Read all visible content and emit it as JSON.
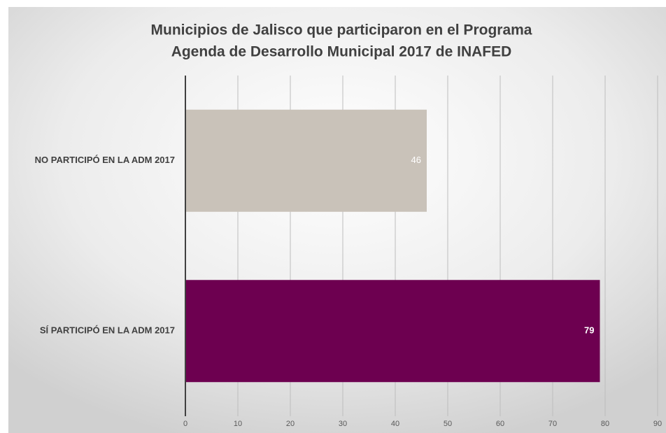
{
  "chart_data": {
    "type": "bar",
    "orientation": "horizontal",
    "title": [
      "Municipios de Jalisco que participaron en el Programa",
      "Agenda de Desarrollo Municipal 2017 de INAFED"
    ],
    "categories": [
      "NO PARTICIPÓ EN LA ADM 2017",
      "SÍ PARTICIPÓ EN LA ADM 2017"
    ],
    "values": [
      46,
      79
    ],
    "colors": [
      "#c9c2b9",
      "#6d0050"
    ],
    "xlim": [
      0,
      90
    ],
    "xticks": [
      0,
      10,
      20,
      30,
      40,
      50,
      60,
      70,
      80,
      90
    ],
    "grid": true
  }
}
